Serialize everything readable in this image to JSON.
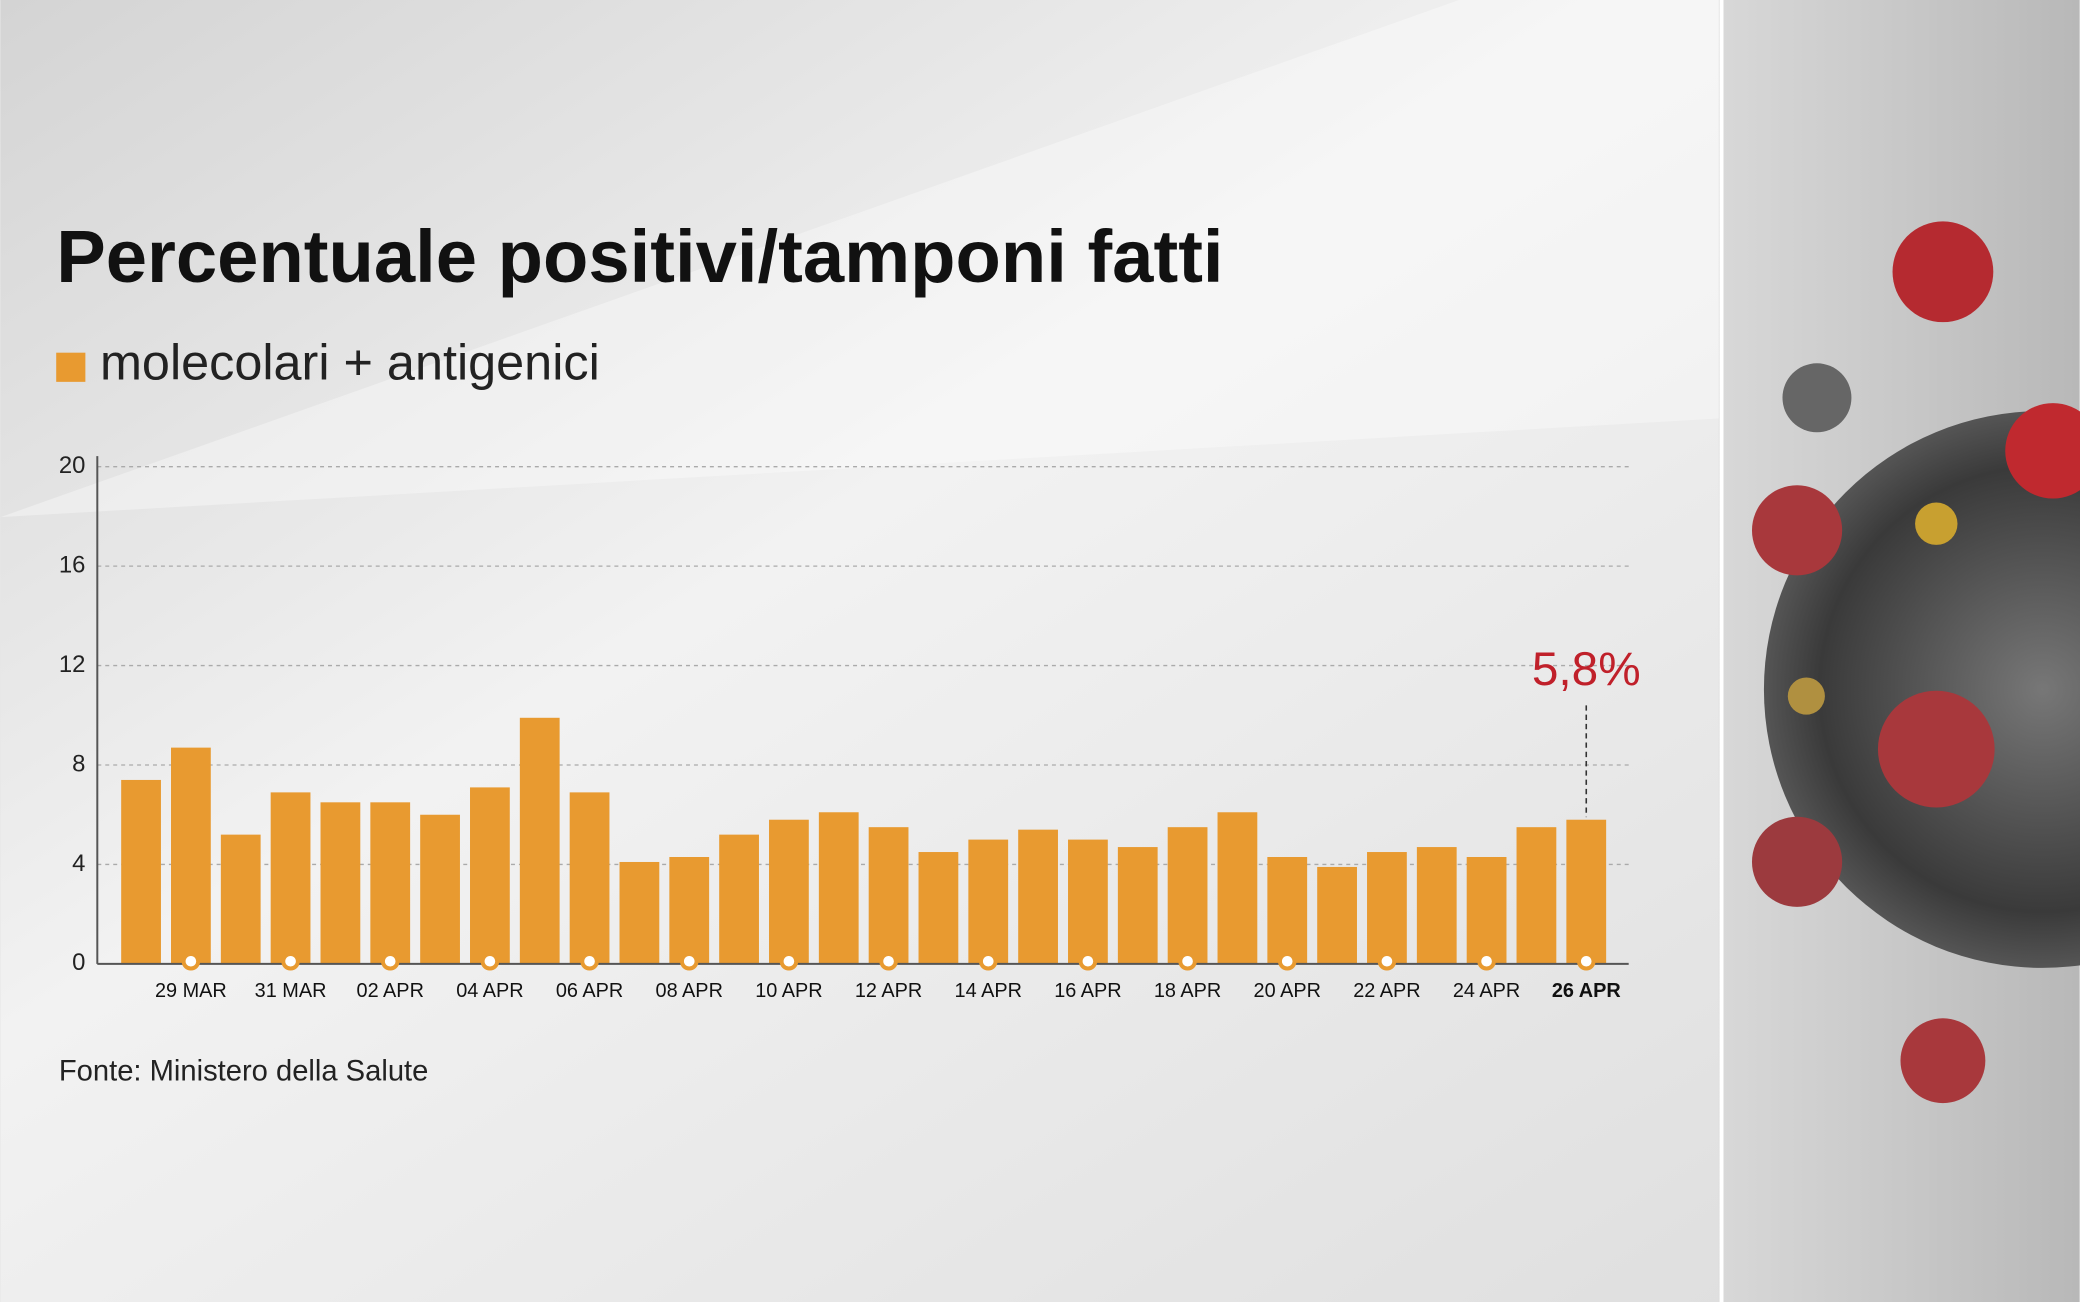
{
  "chart_data": {
    "type": "bar",
    "title": "Percentuale positivi/tamponi fatti",
    "source": "Fonte: Ministero della Salute",
    "categories": [
      null,
      "29 MAR",
      null,
      "31 MAR",
      null,
      "02 APR",
      null,
      "04 APR",
      null,
      "06 APR",
      null,
      "08 APR",
      null,
      "10 APR",
      null,
      "12 APR",
      null,
      "14 APR",
      null,
      "16 APR",
      null,
      "18 APR",
      null,
      "20 APR",
      null,
      "22 APR",
      null,
      "24 APR",
      null,
      "26 APR"
    ],
    "series": [
      {
        "name": "molecolari + antigenici",
        "color": "#e89a30",
        "values": [
          7.4,
          8.7,
          5.2,
          6.9,
          6.5,
          6.5,
          6.0,
          7.1,
          9.9,
          6.9,
          4.1,
          4.3,
          5.2,
          5.8,
          6.1,
          5.5,
          4.5,
          5.0,
          5.4,
          5.0,
          4.7,
          5.5,
          6.1,
          4.3,
          3.9,
          4.5,
          4.7,
          4.3,
          5.5,
          5.8
        ],
        "value_labels": [
          null,
          null,
          null,
          null,
          null,
          null,
          null,
          null,
          null,
          null,
          null,
          null,
          null,
          null,
          null,
          null,
          null,
          null,
          null,
          null,
          null,
          null,
          null,
          null,
          null,
          null,
          null,
          null,
          null,
          "5,8%"
        ]
      }
    ],
    "ylim": [
      0,
      20
    ],
    "yticks": [
      0,
      4,
      8,
      12,
      16,
      20
    ],
    "grid": true
  }
}
